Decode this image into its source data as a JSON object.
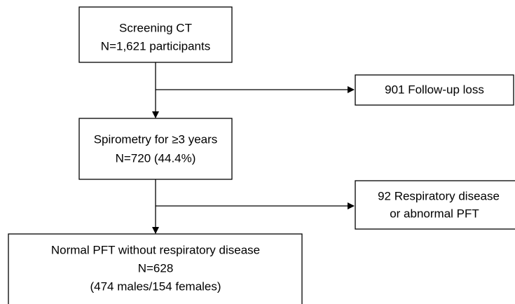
{
  "nodes": [
    {
      "lines": [
        "Screening CT",
        "N=1,621 participants"
      ]
    },
    {
      "lines": [
        "901 Follow-up loss"
      ]
    },
    {
      "lines": [
        "Spirometry for ≥3 years",
        "N=720 (44.4%)"
      ]
    },
    {
      "lines": [
        "92 Respiratory disease",
        "or abnormal PFT"
      ]
    },
    {
      "lines": [
        "Normal PFT without respiratory disease",
        "N=628",
        "(474 males/154 females)"
      ]
    }
  ]
}
